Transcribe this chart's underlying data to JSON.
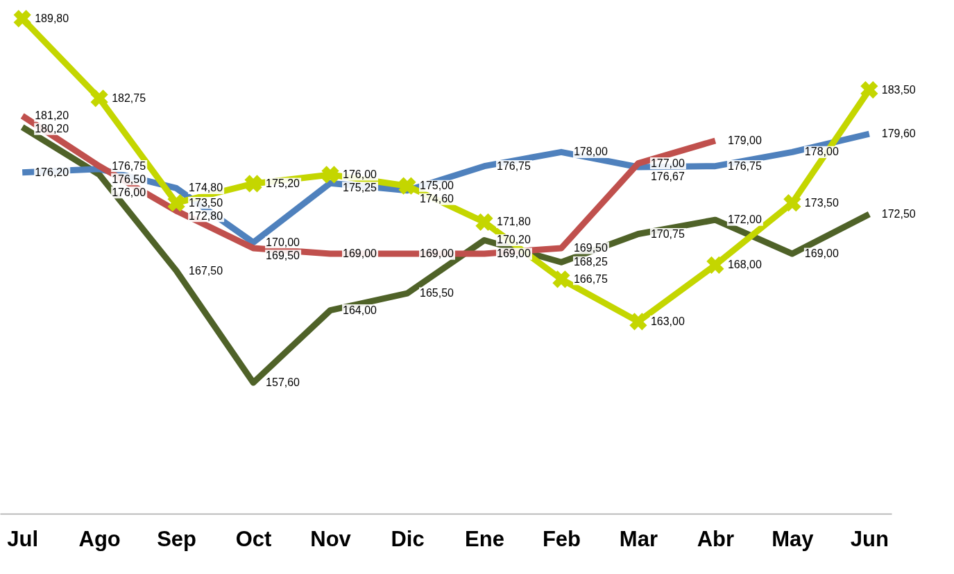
{
  "chart_data": {
    "type": "line",
    "categories": [
      "Jul",
      "Ago",
      "Sep",
      "Oct",
      "Nov",
      "Dic",
      "Ene",
      "Feb",
      "Mar",
      "Abr",
      "May",
      "Jun"
    ],
    "tick_labels": "x",
    "line_style": "solid",
    "series": [
      {
        "color": "#4f6228",
        "marker": "none",
        "values": [
          180.2,
          176.0,
          167.5,
          157.6,
          164.0,
          165.5,
          170.2,
          168.25,
          170.75,
          172.0,
          169.0,
          172.5
        ],
        "value_labels": [
          "180,20",
          "176,00",
          "167,50",
          "157,60",
          "164,00",
          "165,50",
          "170,20",
          "168,25",
          "170,75",
          "172,00",
          "169,00",
          "172,50"
        ]
      },
      {
        "color": "#4f81bd",
        "marker": "none",
        "values": [
          176.2,
          176.5,
          174.8,
          170.0,
          175.25,
          174.6,
          176.75,
          178.0,
          176.67,
          176.75,
          178.0,
          179.6
        ],
        "value_labels": [
          "176,20",
          "176,50",
          "174,80",
          "170,00",
          "175,25",
          "174,60",
          "176,75",
          "178,00",
          "176,67",
          "176,75",
          "178,00",
          "179,60"
        ]
      },
      {
        "color": "#c0504d",
        "marker": "none",
        "values": [
          181.2,
          176.75,
          172.8,
          169.5,
          169.0,
          169.0,
          169.0,
          169.5,
          177.0,
          179.0,
          null,
          null
        ],
        "value_labels": [
          "181,20",
          "176,75",
          "172,80",
          "169,50",
          "169,00",
          "169,00",
          "169,00",
          "169,50",
          "177,00",
          "179,00",
          null,
          null
        ]
      },
      {
        "color": "#c4d600",
        "marker": "cross",
        "values": [
          189.8,
          182.75,
          173.5,
          175.2,
          176.0,
          175.0,
          171.8,
          166.75,
          163.0,
          168.0,
          173.5,
          183.5
        ],
        "value_labels": [
          "189,80",
          "182,75",
          "173,50",
          "175,20",
          "176,00",
          "175,00",
          "171,80",
          "166,75",
          "163,00",
          "168,00",
          "173,50",
          "183,50"
        ]
      }
    ]
  }
}
